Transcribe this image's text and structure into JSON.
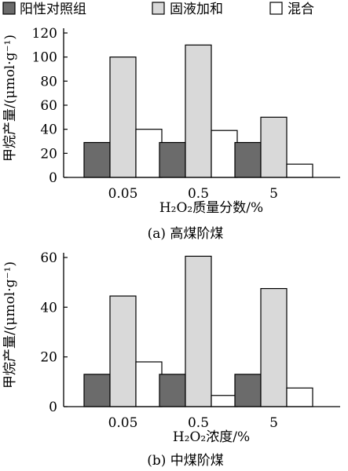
{
  "legend": [
    {
      "label": "阳性对照组",
      "color": "#6b6b6b"
    },
    {
      "label": "固液加和",
      "color": "#d9d9d9"
    },
    {
      "label": "混合",
      "color": "#ffffff"
    }
  ],
  "chart_data": [
    {
      "type": "bar",
      "caption": "(a)  高煤阶煤",
      "xlabel": "H₂O₂质量分数/%",
      "ylabel": "甲烷产量/(μmol·g⁻¹)",
      "categories": [
        "0.05",
        "0.5",
        "5"
      ],
      "series": [
        {
          "name": "阳性对照组",
          "values": [
            29,
            29,
            29
          ]
        },
        {
          "name": "固液加和",
          "values": [
            100,
            110,
            50
          ]
        },
        {
          "name": "混合",
          "values": [
            40,
            39,
            11
          ]
        }
      ],
      "ylim": [
        0,
        120
      ],
      "yticks": [
        0,
        20,
        40,
        60,
        80,
        100,
        120
      ],
      "legend_position": "top",
      "grid": false
    },
    {
      "type": "bar",
      "caption": "(b)  中煤阶煤",
      "xlabel": "H₂O₂浓度/%",
      "ylabel": "甲烷产量/(μmol·g⁻¹)",
      "categories": [
        "0.05",
        "0.5",
        "5"
      ],
      "series": [
        {
          "name": "阳性对照组",
          "values": [
            13,
            13,
            13
          ]
        },
        {
          "name": "固液加和",
          "values": [
            44.5,
            60.5,
            47.5
          ]
        },
        {
          "name": "混合",
          "values": [
            18,
            4.5,
            7.5
          ]
        }
      ],
      "ylim": [
        0,
        60
      ],
      "yticks": [
        0,
        20,
        40,
        60
      ],
      "legend_position": "top",
      "grid": false
    }
  ]
}
